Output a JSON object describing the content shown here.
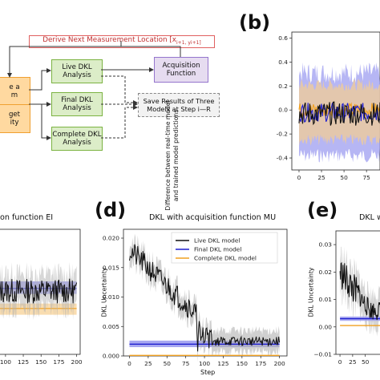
{
  "flowchart": {
    "top_label": "Derive Next Measurement Location [x",
    "top_label_math": "i+1, y",
    "top_label_end": "i+1]",
    "live": "Live DKL\nAnalysis",
    "final": "Final DKL\nAnalysis",
    "complete": "Complete DKL\nAnalysis",
    "acq": "Acquisition\nFunction",
    "save": "Save Results of Three\nModels at Step i—R",
    "left_top": "e a\nm",
    "left_bottom": "get\nity"
  },
  "panels": {
    "b": {
      "letter": "(b)",
      "ylabel": "Difference between real-time model\nand trained model predictions"
    },
    "c": {
      "letter": "",
      "title": "on function EI"
    },
    "d": {
      "letter": "(d)",
      "title": "DKL with acquisition function MU",
      "ylabel": "DKL Uncertainty",
      "xlabel": "Step"
    },
    "e": {
      "letter": "(e)",
      "title": "DKL w",
      "ylabel": "DKL Uncertainty"
    }
  },
  "colors": {
    "live": "#111111",
    "final": "#1f1fcf",
    "complete": "#f0a020",
    "live_band": "#b0b0b0",
    "final_band": "#9d9df0",
    "complete_band": "#f6cf8f"
  },
  "chart_data": [
    {
      "panel": "b",
      "type": "line",
      "xlim": [
        -8,
        90
      ],
      "ylim": [
        -0.5,
        0.65
      ],
      "xticks": [
        0,
        25,
        50,
        75
      ],
      "yticks": [
        -0.4,
        -0.2,
        0.0,
        0.2,
        0.4,
        0.6
      ],
      "series": [
        {
          "name": "",
          "color": "final",
          "noise": 0.08,
          "base": -0.02,
          "band": 0.3
        },
        {
          "name": "",
          "color": "complete",
          "noise": 0.06,
          "base": 0.0,
          "band": 0.22
        },
        {
          "name": "",
          "color": "live",
          "noise": 0.1,
          "base": -0.03,
          "band": 0.0
        }
      ]
    },
    {
      "panel": "c",
      "type": "line",
      "xlim": [
        0,
        210
      ],
      "ylim": [
        0.0,
        0.03
      ],
      "xticks": [
        100,
        125,
        150,
        175,
        200
      ],
      "series": [
        {
          "name": "Live DKL model",
          "color": "live",
          "level": 0.0155
        },
        {
          "name": "Final DKL model",
          "color": "final",
          "level": 0.0158
        },
        {
          "name": "Complete DKL model",
          "color": "complete",
          "level": 0.011
        }
      ]
    },
    {
      "panel": "d",
      "type": "line",
      "xlim": [
        -8,
        210
      ],
      "ylim": [
        0.0,
        0.0215
      ],
      "xticks": [
        0,
        25,
        50,
        75,
        100,
        125,
        150,
        175,
        200
      ],
      "yticks": [
        0.0,
        0.005,
        0.01,
        0.015,
        0.02
      ],
      "ytick_labels": [
        "0.000",
        "0.005",
        "0.010",
        "0.015",
        "0.020"
      ],
      "series": [
        {
          "name": "Live DKL model",
          "color": "live",
          "start": 0.018,
          "end": 0.0025
        },
        {
          "name": "Final DKL model",
          "color": "final",
          "level": 0.002
        },
        {
          "name": "Complete DKL model",
          "color": "complete",
          "level": 0.0001
        }
      ]
    },
    {
      "panel": "e",
      "type": "line",
      "xlim": [
        -8,
        90
      ],
      "ylim": [
        -0.01,
        0.035
      ],
      "xticks": [
        0,
        25,
        50
      ],
      "yticks": [
        -0.01,
        0.0,
        0.01,
        0.02,
        0.03
      ],
      "ytick_labels": [
        "−0.01",
        "0.00",
        "0.01",
        "0.02",
        "0.03"
      ],
      "series": [
        {
          "name": "",
          "color": "live",
          "start": 0.02,
          "end": 0.006
        },
        {
          "name": "",
          "color": "final",
          "level": 0.003
        },
        {
          "name": "",
          "color": "complete",
          "level": 0.0005
        }
      ]
    }
  ]
}
